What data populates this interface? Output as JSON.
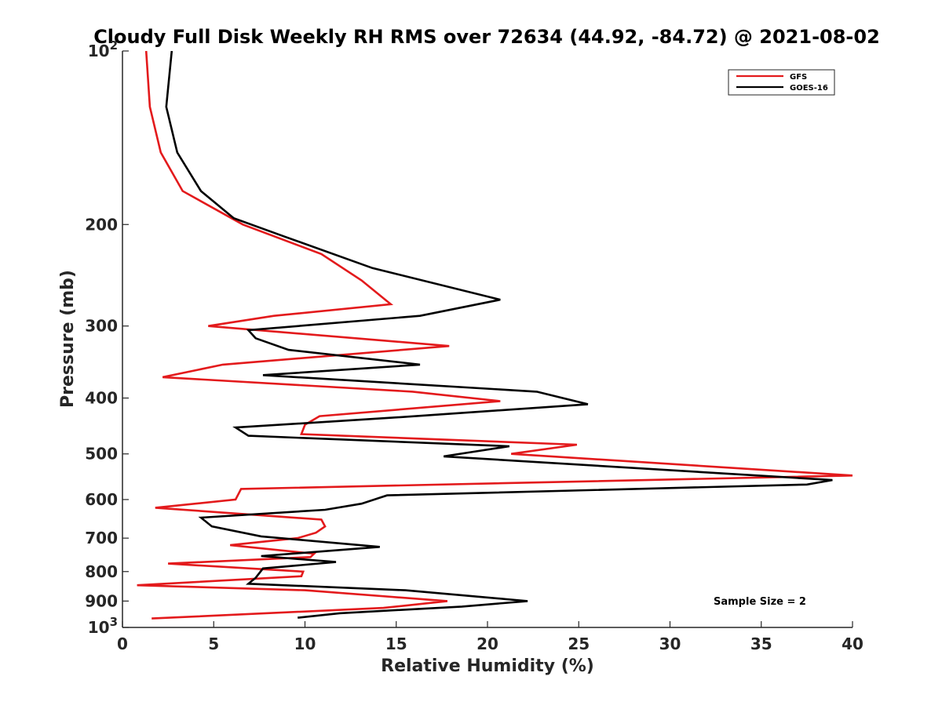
{
  "chart_data": {
    "type": "line",
    "title": "Cloudy Full Disk Weekly RH RMS over 72634 (44.92, -84.72) @ 2021-08-02",
    "xlabel": "Relative Humidity (%)",
    "ylabel": "Pressure (mb)",
    "xlim": [
      0,
      40
    ],
    "ylim": [
      100,
      1000
    ],
    "yscale": "log",
    "y_reversed": true,
    "grid": false,
    "legend_position": "top-right",
    "x_ticks": [
      0,
      5,
      10,
      15,
      20,
      25,
      30,
      35,
      40
    ],
    "y_ticks": [
      {
        "value": 100,
        "label": "10",
        "exp": "2"
      },
      {
        "value": 200,
        "label": "200"
      },
      {
        "value": 300,
        "label": "300"
      },
      {
        "value": 400,
        "label": "400"
      },
      {
        "value": 500,
        "label": "500"
      },
      {
        "value": 600,
        "label": "600"
      },
      {
        "value": 700,
        "label": "700"
      },
      {
        "value": 800,
        "label": "800"
      },
      {
        "value": 900,
        "label": "900"
      },
      {
        "value": 1000,
        "label": "10",
        "exp": "3"
      }
    ],
    "series": [
      {
        "name": "GFS",
        "color": "#e31a1c",
        "points": [
          [
            1.3,
            100
          ],
          [
            1.5,
            125
          ],
          [
            2.1,
            150
          ],
          [
            3.3,
            175
          ],
          [
            6.6,
            200
          ],
          [
            10.9,
            225
          ],
          [
            13.1,
            250
          ],
          [
            14.7,
            275
          ],
          [
            8.3,
            288
          ],
          [
            4.7,
            300
          ],
          [
            17.9,
            325
          ],
          [
            5.5,
            350
          ],
          [
            2.2,
            368
          ],
          [
            15.9,
            390
          ],
          [
            20.7,
            405
          ],
          [
            10.8,
            430
          ],
          [
            10.0,
            445
          ],
          [
            9.8,
            462
          ],
          [
            24.9,
            482
          ],
          [
            21.3,
            500
          ],
          [
            40.0,
            545
          ],
          [
            6.5,
            575
          ],
          [
            6.2,
            600
          ],
          [
            1.8,
            620
          ],
          [
            10.9,
            650
          ],
          [
            11.1,
            668
          ],
          [
            10.6,
            685
          ],
          [
            9.6,
            700
          ],
          [
            5.9,
            720
          ],
          [
            10.5,
            745
          ],
          [
            10.3,
            755
          ],
          [
            2.5,
            775
          ],
          [
            9.9,
            800
          ],
          [
            9.8,
            815
          ],
          [
            0.8,
            845
          ],
          [
            10.0,
            862
          ],
          [
            17.8,
            900
          ],
          [
            14.3,
            925
          ],
          [
            1.6,
            965
          ]
        ]
      },
      {
        "name": "GOES-16",
        "color": "#000000",
        "points": [
          [
            2.7,
            100
          ],
          [
            2.4,
            125
          ],
          [
            3.0,
            150
          ],
          [
            4.3,
            175
          ],
          [
            6.1,
            195
          ],
          [
            8.9,
            210
          ],
          [
            13.7,
            238
          ],
          [
            20.7,
            270
          ],
          [
            16.3,
            288
          ],
          [
            6.9,
            305
          ],
          [
            7.3,
            315
          ],
          [
            9.1,
            330
          ],
          [
            16.3,
            350
          ],
          [
            7.7,
            365
          ],
          [
            22.7,
            390
          ],
          [
            25.5,
            410
          ],
          [
            15.1,
            432
          ],
          [
            6.2,
            450
          ],
          [
            6.9,
            465
          ],
          [
            21.2,
            485
          ],
          [
            17.6,
            505
          ],
          [
            38.9,
            555
          ],
          [
            37.5,
            565
          ],
          [
            14.5,
            590
          ],
          [
            13.1,
            610
          ],
          [
            11.1,
            625
          ],
          [
            4.3,
            645
          ],
          [
            4.9,
            668
          ],
          [
            7.6,
            695
          ],
          [
            14.1,
            725
          ],
          [
            7.6,
            752
          ],
          [
            11.7,
            770
          ],
          [
            7.7,
            790
          ],
          [
            7.3,
            820
          ],
          [
            6.9,
            840
          ],
          [
            15.5,
            862
          ],
          [
            22.2,
            900
          ],
          [
            18.6,
            920
          ],
          [
            11.9,
            945
          ],
          [
            9.6,
            962
          ]
        ]
      }
    ],
    "annotations": [
      "Sample Size = 2"
    ]
  }
}
